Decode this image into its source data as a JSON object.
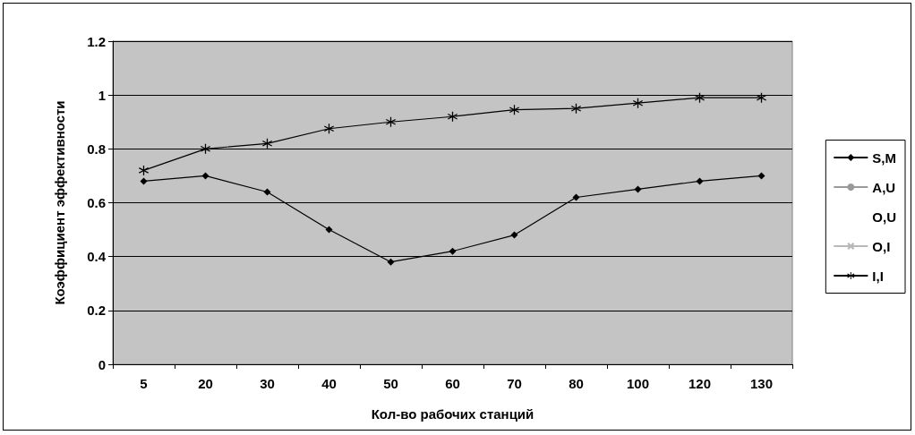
{
  "chart_data": {
    "type": "line",
    "xlabel": "Кол-во рабочих станций",
    "ylabel": "Коэффициент эффективности",
    "categories": [
      "5",
      "20",
      "30",
      "40",
      "50",
      "60",
      "70",
      "80",
      "100",
      "120",
      "130"
    ],
    "series": [
      {
        "name": "S,M",
        "color": "#000000",
        "marker": "diamond",
        "values": [
          0.68,
          0.7,
          0.64,
          0.5,
          0.38,
          0.42,
          0.48,
          0.62,
          0.65,
          0.68,
          0.7
        ]
      },
      {
        "name": "A,U",
        "color": "#9a9a9a",
        "marker": "circle",
        "values": [
          null,
          null,
          null,
          null,
          null,
          null,
          null,
          null,
          null,
          null,
          null
        ]
      },
      {
        "name": "O,U",
        "marker": "none",
        "values": [
          null,
          null,
          null,
          null,
          null,
          null,
          null,
          null,
          null,
          null,
          null
        ]
      },
      {
        "name": "O,I",
        "color": "#b8b8b8",
        "marker": "cross",
        "values": [
          null,
          null,
          null,
          null,
          null,
          null,
          null,
          null,
          null,
          null,
          null
        ]
      },
      {
        "name": "I,I",
        "color": "#000000",
        "marker": "star",
        "values": [
          0.72,
          0.8,
          0.82,
          0.875,
          0.9,
          0.92,
          0.945,
          0.95,
          0.97,
          0.99,
          0.99
        ]
      }
    ],
    "ylim": [
      0,
      1.2
    ],
    "yticks": [
      0,
      0.2,
      0.4,
      0.6,
      0.8,
      1,
      1.2
    ],
    "grid": "y",
    "legend": "right"
  }
}
